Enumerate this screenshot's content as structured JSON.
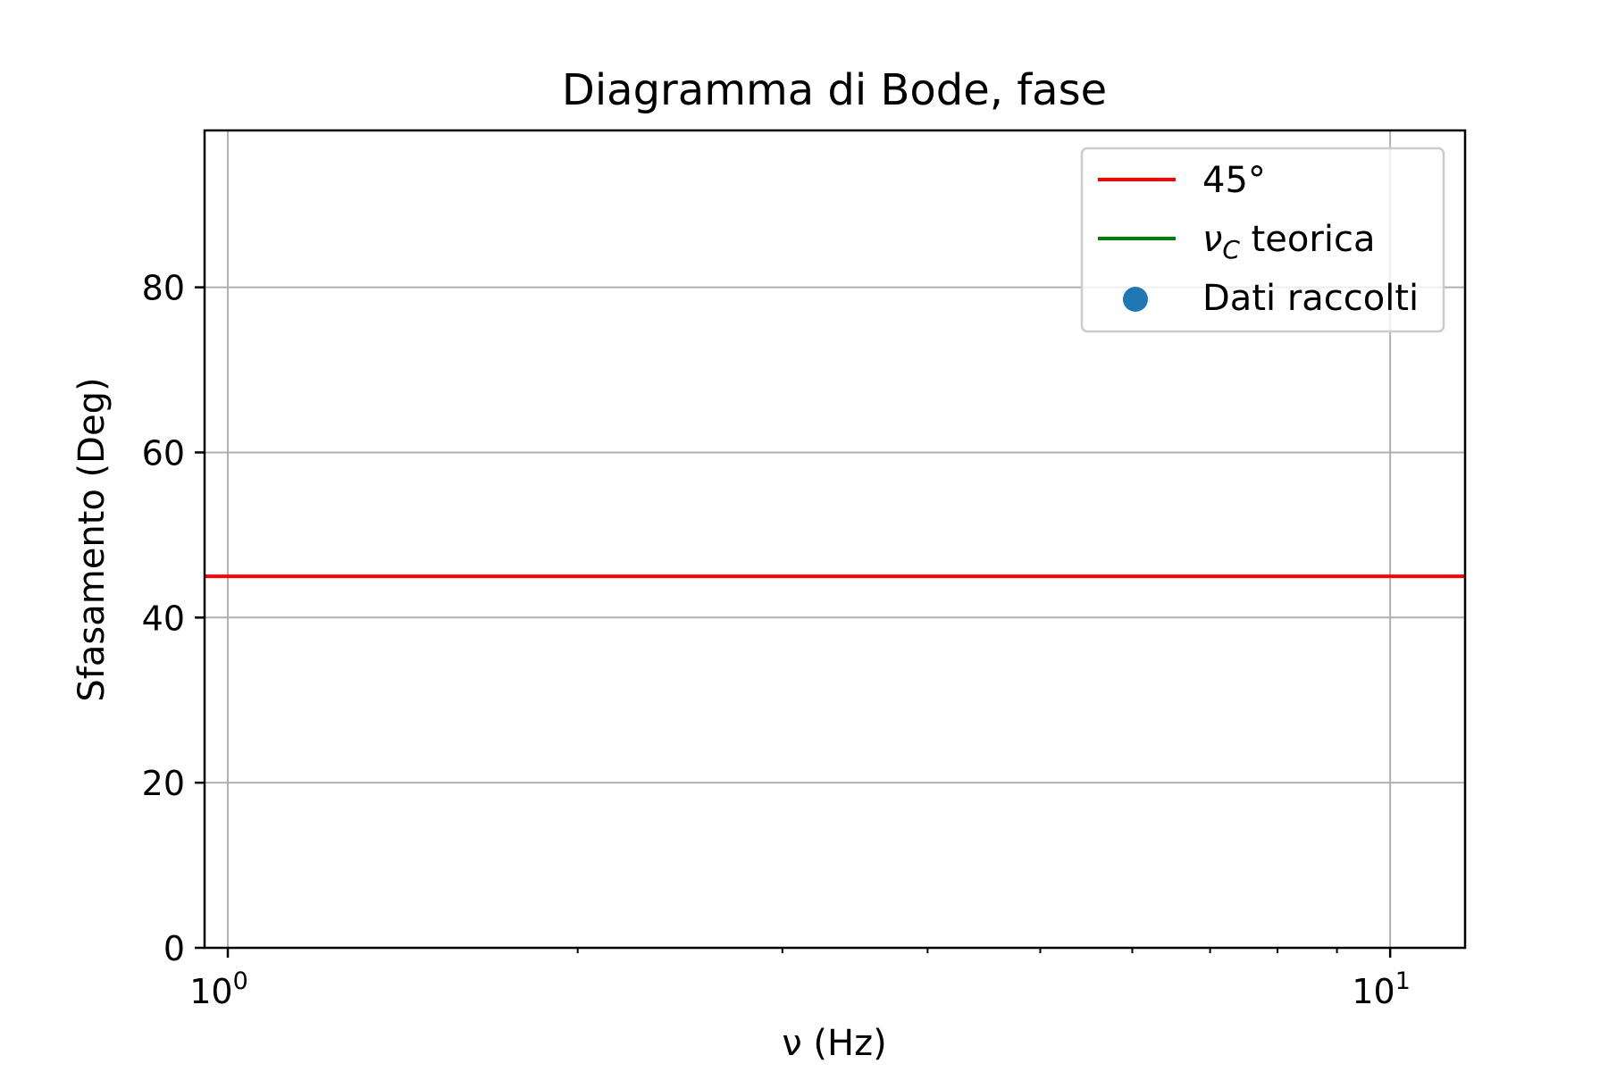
{
  "chart_data": {
    "type": "line",
    "title": "Diagramma di Bode, fase",
    "xlabel": "ν (Hz)",
    "ylabel": "Sfasamento (Deg)",
    "xscale": "log",
    "xlim": [
      0.955,
      11.6
    ],
    "ylim": [
      0,
      99
    ],
    "grid": true,
    "x_ticks": [
      {
        "value": 1,
        "base": "10",
        "exp": "0"
      },
      {
        "value": 10,
        "base": "10",
        "exp": "1"
      }
    ],
    "y_ticks": [
      {
        "value": 0,
        "label": "0"
      },
      {
        "value": 20,
        "label": "20"
      },
      {
        "value": 40,
        "label": "40"
      },
      {
        "value": 60,
        "label": "60"
      },
      {
        "value": 80,
        "label": "80"
      }
    ],
    "minor_x_ticks": [
      2,
      3,
      4,
      5,
      6,
      7,
      8,
      9
    ],
    "series": [
      {
        "name": "45°",
        "kind": "hline",
        "y": 45,
        "color": "#ff0000"
      },
      {
        "name": "ν",
        "name_sub": "C",
        "name_suffix": " teorica",
        "kind": "vline",
        "x": null,
        "color": "#008000"
      },
      {
        "name": "Dati raccolti",
        "kind": "scatter",
        "points": [],
        "color": "#1f77b4"
      }
    ],
    "legend_position": "upper right"
  }
}
